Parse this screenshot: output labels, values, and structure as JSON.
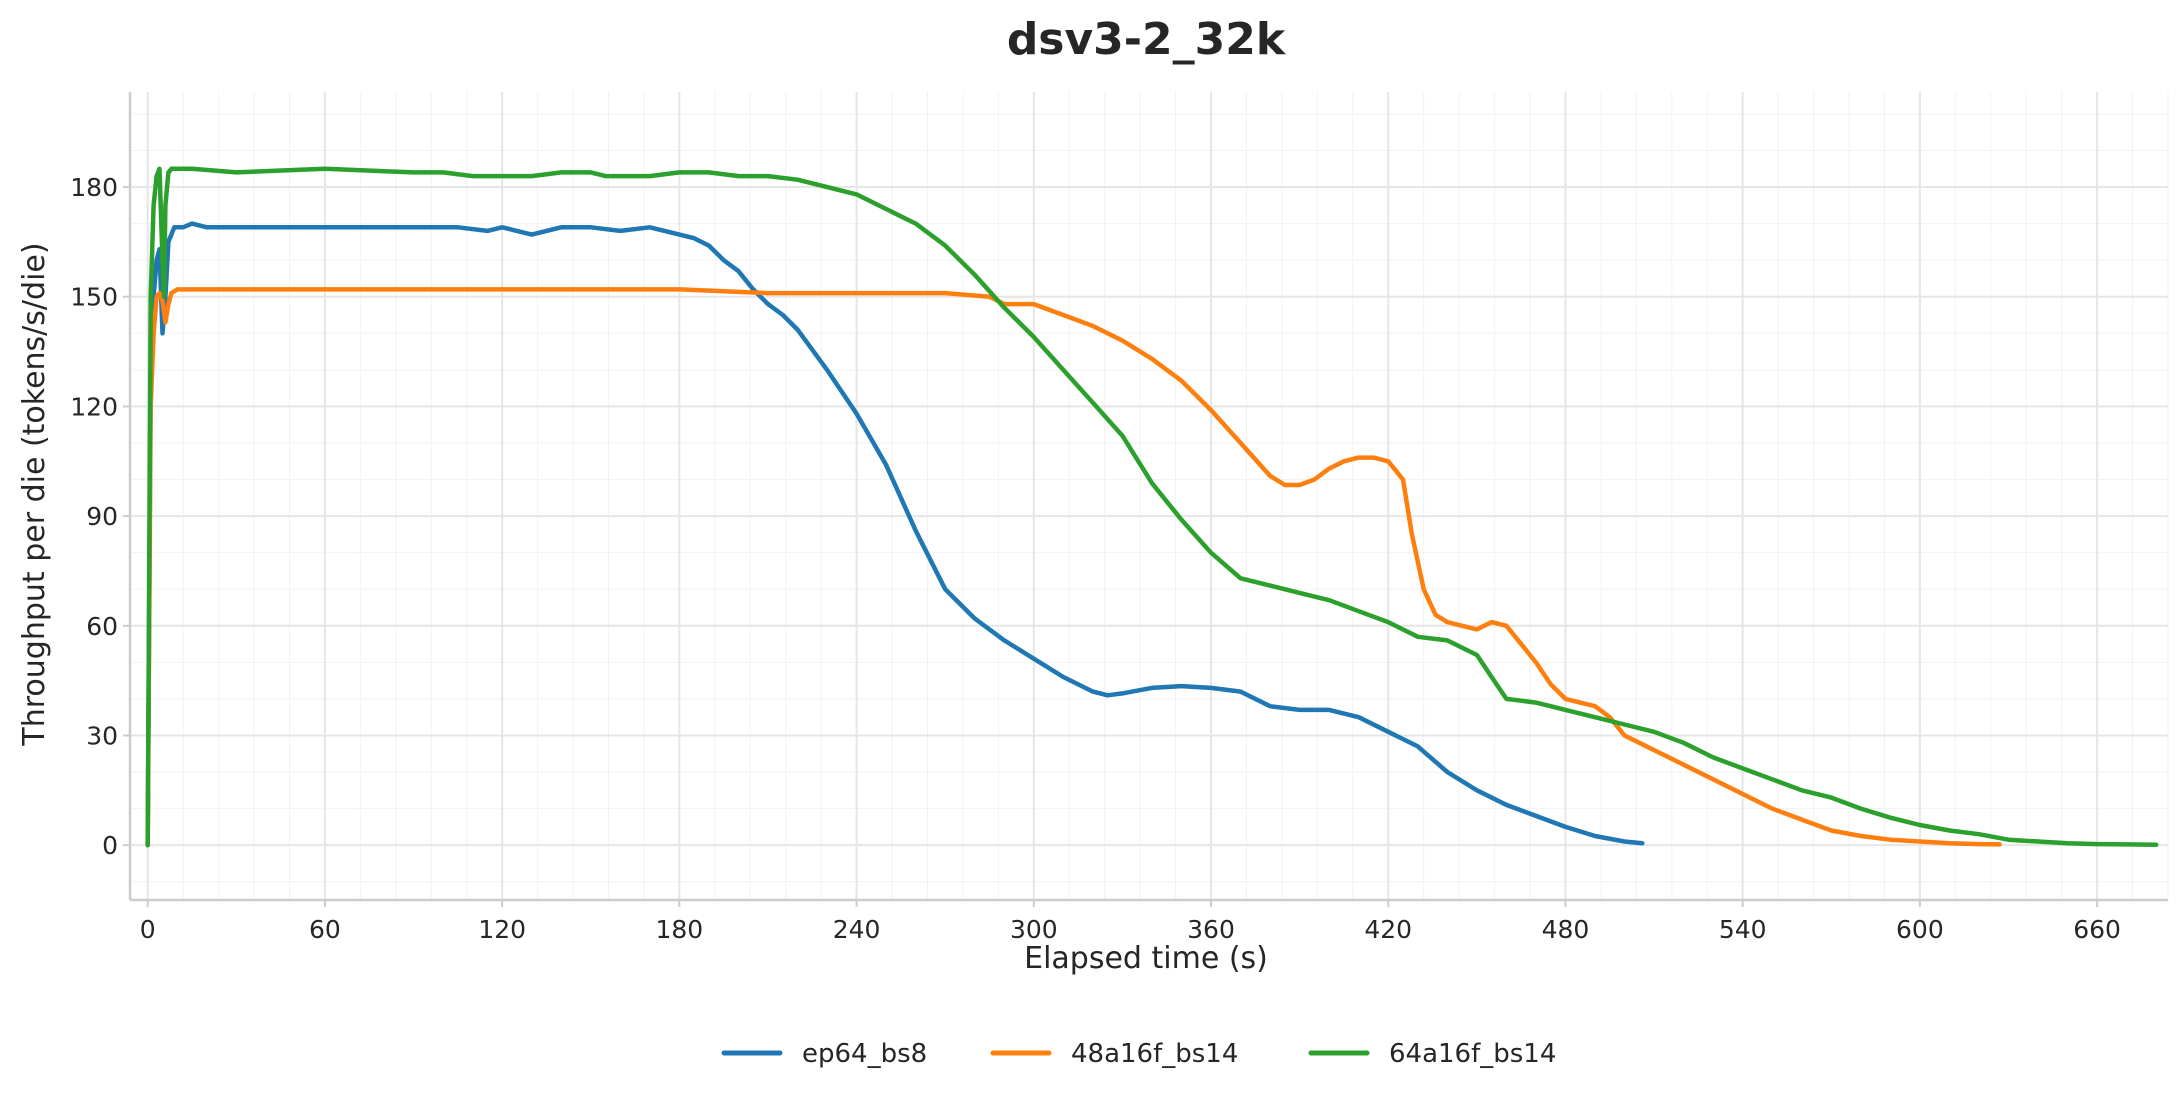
{
  "chart_data": {
    "type": "line",
    "title": "dsv3-2_32k",
    "xlabel": "Elapsed time (s)",
    "ylabel": "Throughput per die (tokens/s/die)",
    "xlim": [
      -6,
      684
    ],
    "ylim": [
      -15,
      206
    ],
    "xticks": [
      0,
      60,
      120,
      180,
      240,
      300,
      360,
      420,
      480,
      540,
      600,
      660
    ],
    "yticks": [
      0,
      30,
      60,
      90,
      120,
      150,
      180
    ],
    "grid": true,
    "legend_position": "bottom-center",
    "series": [
      {
        "name": "ep64_bs8",
        "color": "#1f77b4",
        "x": [
          0,
          1,
          2,
          3,
          4,
          5,
          6,
          7,
          9,
          12,
          15,
          20,
          30,
          45,
          60,
          75,
          90,
          105,
          115,
          120,
          125,
          130,
          140,
          150,
          160,
          170,
          175,
          180,
          185,
          190,
          195,
          200,
          205,
          210,
          215,
          220,
          230,
          240,
          250,
          260,
          270,
          280,
          290,
          300,
          310,
          320,
          325,
          330,
          340,
          350,
          360,
          370,
          380,
          390,
          400,
          410,
          420,
          430,
          440,
          450,
          460,
          470,
          480,
          490,
          500,
          506
        ],
        "y": [
          0,
          130,
          150,
          160,
          163,
          140,
          150,
          165,
          169,
          169,
          170,
          169,
          169,
          169,
          169,
          169,
          169,
          169,
          168,
          169,
          168,
          167,
          169,
          169,
          168,
          169,
          168,
          167,
          166,
          164,
          160,
          157,
          152,
          148,
          145,
          141,
          130,
          118,
          104,
          86,
          70,
          62,
          56,
          51,
          46,
          42,
          41,
          41.5,
          43,
          43.5,
          43,
          42,
          38,
          37,
          37,
          35,
          31,
          27,
          20,
          15,
          11,
          8,
          5,
          2.5,
          1,
          0.5
        ]
      },
      {
        "name": "48a16f_bs14",
        "color": "#ff7f0e",
        "x": [
          0,
          1,
          2,
          3,
          4,
          5,
          6,
          7,
          8,
          10,
          15,
          30,
          60,
          90,
          120,
          150,
          180,
          210,
          240,
          270,
          285,
          290,
          300,
          310,
          320,
          330,
          340,
          350,
          360,
          370,
          380,
          385,
          390,
          395,
          400,
          405,
          410,
          415,
          420,
          425,
          428,
          432,
          436,
          440,
          445,
          450,
          455,
          460,
          465,
          470,
          475,
          480,
          485,
          490,
          495,
          500,
          510,
          520,
          530,
          540,
          550,
          560,
          570,
          580,
          590,
          600,
          610,
          620,
          627
        ],
        "y": [
          0,
          120,
          140,
          150,
          151,
          149,
          143,
          148,
          151,
          152,
          152,
          152,
          152,
          152,
          152,
          152,
          152,
          151,
          151,
          151,
          150,
          148,
          148,
          145,
          142,
          138,
          133,
          127,
          119,
          110,
          101,
          98.5,
          98.5,
          100,
          103,
          105,
          106,
          106,
          105,
          100,
          85,
          70,
          63,
          61,
          60,
          59,
          61,
          60,
          55,
          50,
          44,
          40,
          39,
          38,
          35,
          30,
          26,
          22,
          18,
          14,
          10,
          7,
          4,
          2.5,
          1.5,
          1,
          0.5,
          0.3,
          0.2
        ]
      },
      {
        "name": "64a16f_bs14",
        "color": "#2ca02c",
        "x": [
          0,
          1,
          2,
          3,
          4,
          5,
          5.5,
          6,
          7,
          8,
          9,
          10,
          15,
          30,
          60,
          90,
          100,
          110,
          120,
          130,
          140,
          150,
          155,
          160,
          170,
          180,
          190,
          200,
          210,
          220,
          230,
          240,
          250,
          260,
          270,
          280,
          290,
          300,
          310,
          320,
          330,
          340,
          350,
          360,
          370,
          380,
          390,
          400,
          410,
          420,
          430,
          440,
          450,
          455,
          460,
          465,
          470,
          475,
          480,
          490,
          500,
          510,
          520,
          530,
          540,
          550,
          560,
          570,
          580,
          590,
          600,
          610,
          620,
          630,
          640,
          650,
          660,
          670,
          680
        ],
        "y": [
          0,
          150,
          175,
          183,
          185,
          160,
          150,
          175,
          184,
          185,
          185,
          185,
          185,
          184,
          185,
          184,
          184,
          183,
          183,
          183,
          184,
          184,
          183,
          183,
          183,
          184,
          184,
          183,
          183,
          182,
          180,
          178,
          174,
          170,
          164,
          156,
          147,
          139,
          130,
          121,
          112,
          99,
          89,
          80,
          73,
          71,
          69,
          67,
          64,
          61,
          57,
          56,
          52,
          46,
          40,
          39.5,
          39,
          38,
          37,
          35,
          33,
          31,
          28,
          24,
          21,
          18,
          15,
          13,
          10,
          7.5,
          5.5,
          4,
          3,
          1.5,
          1,
          0.5,
          0.3,
          0.2,
          0.1
        ]
      }
    ]
  }
}
